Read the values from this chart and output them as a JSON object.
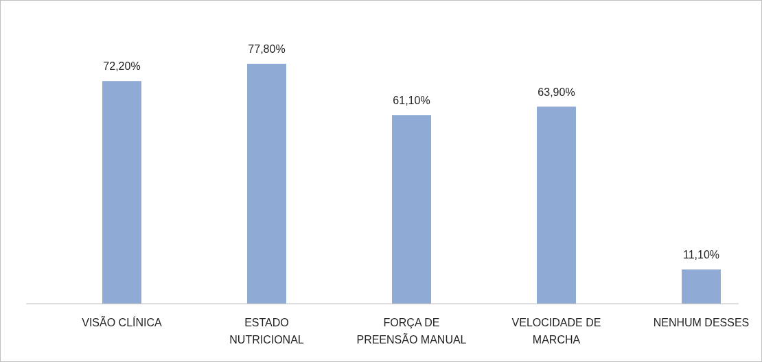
{
  "chart_data": {
    "type": "bar",
    "categories": [
      "VISÃO CLÍNICA",
      "ESTADO NUTRICIONAL",
      "FORÇA DE PREENSÃO MANUAL",
      "VELOCIDADE DE MARCHA",
      "NENHUM DESSES"
    ],
    "values": [
      72.2,
      77.8,
      61.1,
      63.9,
      11.1
    ],
    "value_labels": [
      "72,20%",
      "77,80%",
      "61,10%",
      "63,90%",
      "11,10%"
    ],
    "color": "#8faad4"
  }
}
